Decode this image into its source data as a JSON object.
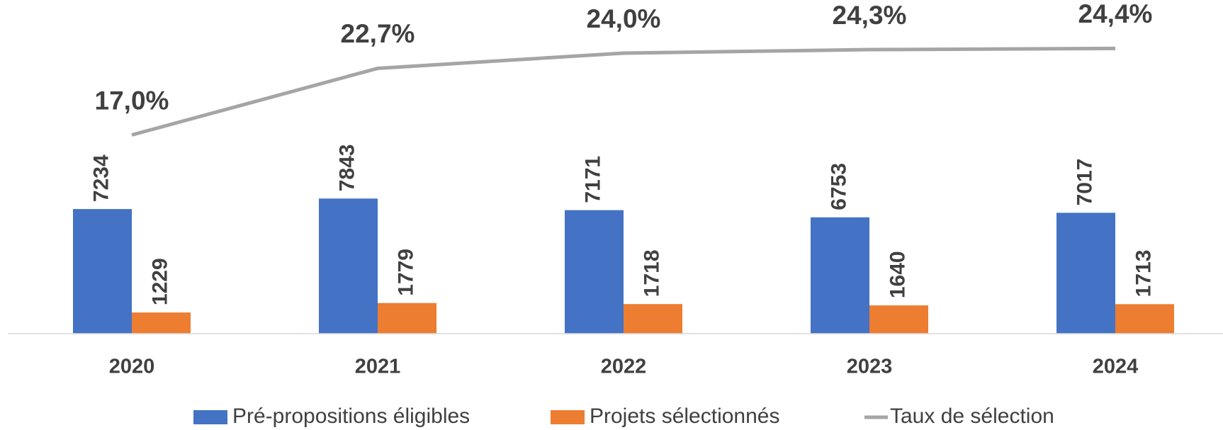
{
  "chart_data": {
    "type": "bar",
    "categories": [
      "2020",
      "2021",
      "2022",
      "2023",
      "2024"
    ],
    "series": [
      {
        "name": "Pré-propositions éligibles",
        "color": "#4472c4",
        "values": [
          7234,
          7843,
          7171,
          6753,
          7017
        ]
      },
      {
        "name": "Projets sélectionnés",
        "color": "#ed7d31",
        "values": [
          1229,
          1779,
          1718,
          1640,
          1713
        ]
      },
      {
        "name": "Taux de sélection",
        "type": "line",
        "axis": "y2",
        "color": "#a5a5a5",
        "values": [
          17.0,
          22.7,
          24.0,
          24.3,
          24.4
        ],
        "value_labels": [
          "17,0%",
          "22,7%",
          "24,0%",
          "24,3%",
          "24,4%"
        ]
      }
    ],
    "ylim": [
      0,
      19000
    ],
    "y2lim": [
      0,
      28
    ],
    "grid": false,
    "legend": "bottom"
  }
}
